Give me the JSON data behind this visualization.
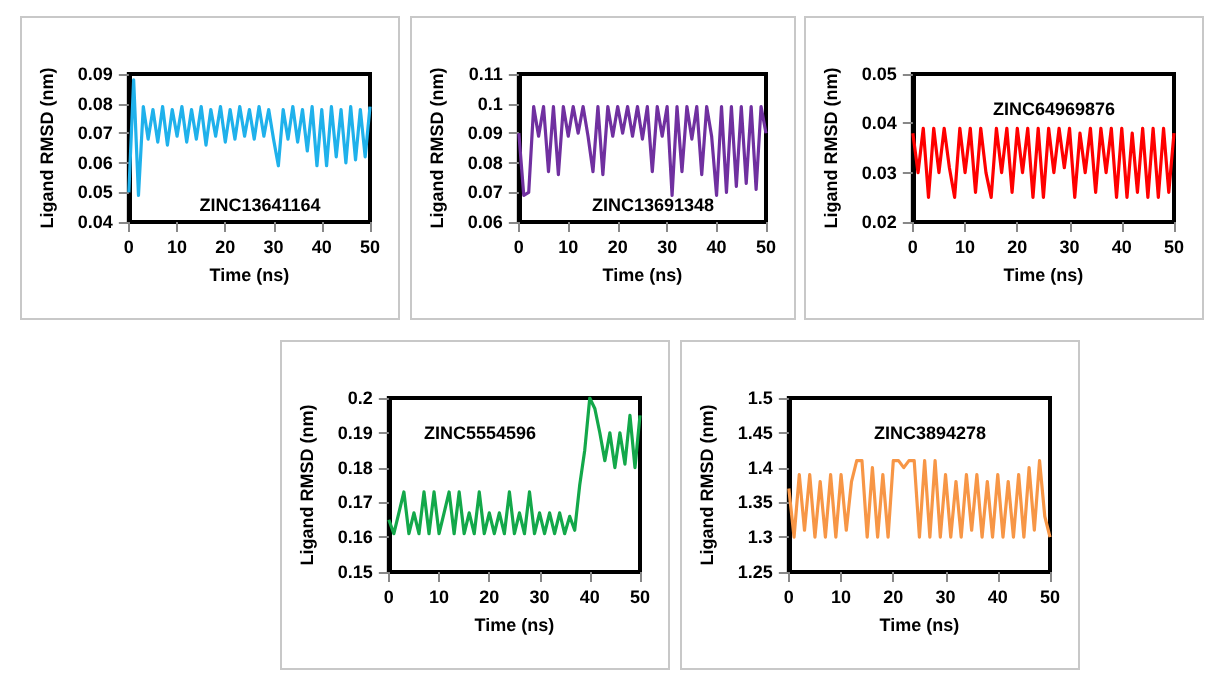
{
  "chart_data": [
    {
      "type": "line",
      "title": "ZINC13641164",
      "xlabel": "Time (ns)",
      "ylabel": "Ligand RMSD (nm)",
      "color": "#1fb1eb",
      "xlim": [
        0,
        50
      ],
      "xticks": [
        0,
        10,
        20,
        30,
        40,
        50
      ],
      "ylim": [
        0.04,
        0.09
      ],
      "yticks": [
        0.04,
        0.05,
        0.06,
        0.07,
        0.08,
        0.09
      ],
      "x": [
        0,
        1,
        2,
        3,
        4,
        5,
        6,
        7,
        8,
        9,
        10,
        11,
        12,
        13,
        14,
        15,
        16,
        17,
        18,
        19,
        20,
        21,
        22,
        23,
        24,
        25,
        26,
        27,
        28,
        29,
        30,
        31,
        32,
        33,
        34,
        35,
        36,
        37,
        38,
        39,
        40,
        41,
        42,
        43,
        44,
        45,
        46,
        47,
        48,
        49,
        50
      ],
      "values": [
        0.05,
        0.088,
        0.049,
        0.079,
        0.068,
        0.078,
        0.067,
        0.079,
        0.066,
        0.078,
        0.069,
        0.079,
        0.067,
        0.078,
        0.068,
        0.079,
        0.066,
        0.078,
        0.069,
        0.079,
        0.067,
        0.078,
        0.068,
        0.079,
        0.069,
        0.078,
        0.068,
        0.079,
        0.069,
        0.078,
        0.068,
        0.059,
        0.078,
        0.068,
        0.079,
        0.067,
        0.078,
        0.064,
        0.079,
        0.059,
        0.078,
        0.059,
        0.079,
        0.062,
        0.078,
        0.06,
        0.079,
        0.061,
        0.078,
        0.062,
        0.079
      ]
    },
    {
      "type": "line",
      "title": "ZINC13691348",
      "xlabel": "Time (ns)",
      "ylabel": "Ligand RMSD (nm)",
      "color": "#7030a0",
      "xlim": [
        0,
        50
      ],
      "xticks": [
        0,
        10,
        20,
        30,
        40,
        50
      ],
      "ylim": [
        0.06,
        0.11
      ],
      "yticks": [
        0.06,
        0.07,
        0.08,
        0.09,
        0.1,
        0.11
      ],
      "x": [
        0,
        1,
        2,
        3,
        4,
        5,
        6,
        7,
        8,
        9,
        10,
        11,
        12,
        13,
        14,
        15,
        16,
        17,
        18,
        19,
        20,
        21,
        22,
        23,
        24,
        25,
        26,
        27,
        28,
        29,
        30,
        31,
        32,
        33,
        34,
        35,
        36,
        37,
        38,
        39,
        40,
        41,
        42,
        43,
        44,
        45,
        46,
        47,
        48,
        49,
        50
      ],
      "values": [
        0.09,
        0.069,
        0.07,
        0.099,
        0.089,
        0.099,
        0.077,
        0.099,
        0.076,
        0.099,
        0.089,
        0.099,
        0.09,
        0.099,
        0.089,
        0.077,
        0.099,
        0.076,
        0.099,
        0.089,
        0.099,
        0.09,
        0.099,
        0.089,
        0.099,
        0.088,
        0.099,
        0.077,
        0.099,
        0.089,
        0.099,
        0.069,
        0.099,
        0.077,
        0.099,
        0.088,
        0.099,
        0.076,
        0.099,
        0.089,
        0.069,
        0.099,
        0.07,
        0.099,
        0.072,
        0.099,
        0.073,
        0.099,
        0.071,
        0.099,
        0.09
      ]
    },
    {
      "type": "line",
      "title": "ZINC64969876",
      "xlabel": "Time (ns)",
      "ylabel": "Ligand RMSD (nm)",
      "color": "#ff0000",
      "xlim": [
        0,
        50
      ],
      "xticks": [
        0,
        10,
        20,
        30,
        40,
        50
      ],
      "ylim": [
        0.02,
        0.05
      ],
      "yticks": [
        0.02,
        0.03,
        0.04,
        0.05
      ],
      "x": [
        0,
        1,
        2,
        3,
        4,
        5,
        6,
        7,
        8,
        9,
        10,
        11,
        12,
        13,
        14,
        15,
        16,
        17,
        18,
        19,
        20,
        21,
        22,
        23,
        24,
        25,
        26,
        27,
        28,
        29,
        30,
        31,
        32,
        33,
        34,
        35,
        36,
        37,
        38,
        39,
        40,
        41,
        42,
        43,
        44,
        45,
        46,
        47,
        48,
        49,
        50
      ],
      "values": [
        0.038,
        0.03,
        0.039,
        0.025,
        0.039,
        0.03,
        0.039,
        0.031,
        0.025,
        0.039,
        0.03,
        0.039,
        0.026,
        0.039,
        0.03,
        0.025,
        0.039,
        0.03,
        0.039,
        0.026,
        0.039,
        0.03,
        0.039,
        0.025,
        0.039,
        0.025,
        0.039,
        0.03,
        0.039,
        0.031,
        0.039,
        0.025,
        0.038,
        0.03,
        0.039,
        0.026,
        0.039,
        0.03,
        0.039,
        0.025,
        0.039,
        0.025,
        0.038,
        0.026,
        0.039,
        0.025,
        0.039,
        0.025,
        0.039,
        0.026,
        0.038
      ]
    },
    {
      "type": "line",
      "title": "ZINC5554596",
      "xlabel": "Time (ns)",
      "ylabel": "Ligand RMSD (nm)",
      "color": "#13a84a",
      "xlim": [
        0,
        50
      ],
      "xticks": [
        0,
        10,
        20,
        30,
        40,
        50
      ],
      "ylim": [
        0.15,
        0.2
      ],
      "yticks": [
        0.15,
        0.16,
        0.17,
        0.18,
        0.19,
        0.2
      ],
      "x": [
        0,
        1,
        2,
        3,
        4,
        5,
        6,
        7,
        8,
        9,
        10,
        11,
        12,
        13,
        14,
        15,
        16,
        17,
        18,
        19,
        20,
        21,
        22,
        23,
        24,
        25,
        26,
        27,
        28,
        29,
        30,
        31,
        32,
        33,
        34,
        35,
        36,
        37,
        38,
        39,
        40,
        41,
        42,
        43,
        44,
        45,
        46,
        47,
        48,
        49,
        50
      ],
      "values": [
        0.165,
        0.161,
        0.167,
        0.173,
        0.161,
        0.167,
        0.161,
        0.173,
        0.161,
        0.173,
        0.161,
        0.167,
        0.173,
        0.161,
        0.173,
        0.161,
        0.167,
        0.161,
        0.173,
        0.161,
        0.167,
        0.161,
        0.167,
        0.161,
        0.173,
        0.161,
        0.167,
        0.161,
        0.173,
        0.161,
        0.167,
        0.161,
        0.167,
        0.161,
        0.167,
        0.161,
        0.166,
        0.162,
        0.175,
        0.185,
        0.2,
        0.197,
        0.19,
        0.182,
        0.19,
        0.18,
        0.19,
        0.181,
        0.195,
        0.18,
        0.195
      ]
    },
    {
      "type": "line",
      "title": "ZINC3894278",
      "xlabel": "Time (ns)",
      "ylabel": "Ligand RMSD (nm)",
      "color": "#f79646",
      "xlim": [
        0,
        50
      ],
      "xticks": [
        0,
        10,
        20,
        30,
        40,
        50
      ],
      "ylim": [
        1.25,
        1.5
      ],
      "yticks": [
        1.25,
        1.3,
        1.35,
        1.4,
        1.45,
        1.5
      ],
      "x": [
        0,
        1,
        2,
        3,
        4,
        5,
        6,
        7,
        8,
        9,
        10,
        11,
        12,
        13,
        14,
        15,
        16,
        17,
        18,
        19,
        20,
        21,
        22,
        23,
        24,
        25,
        26,
        27,
        28,
        29,
        30,
        31,
        32,
        33,
        34,
        35,
        36,
        37,
        38,
        39,
        40,
        41,
        42,
        43,
        44,
        45,
        46,
        47,
        48,
        49,
        50
      ],
      "values": [
        1.37,
        1.3,
        1.39,
        1.31,
        1.39,
        1.3,
        1.38,
        1.3,
        1.39,
        1.3,
        1.39,
        1.31,
        1.38,
        1.41,
        1.41,
        1.3,
        1.4,
        1.3,
        1.39,
        1.3,
        1.41,
        1.41,
        1.4,
        1.41,
        1.41,
        1.3,
        1.41,
        1.3,
        1.41,
        1.3,
        1.39,
        1.3,
        1.38,
        1.3,
        1.39,
        1.31,
        1.39,
        1.3,
        1.38,
        1.3,
        1.39,
        1.3,
        1.38,
        1.3,
        1.39,
        1.3,
        1.4,
        1.31,
        1.41,
        1.33,
        1.3
      ]
    }
  ]
}
